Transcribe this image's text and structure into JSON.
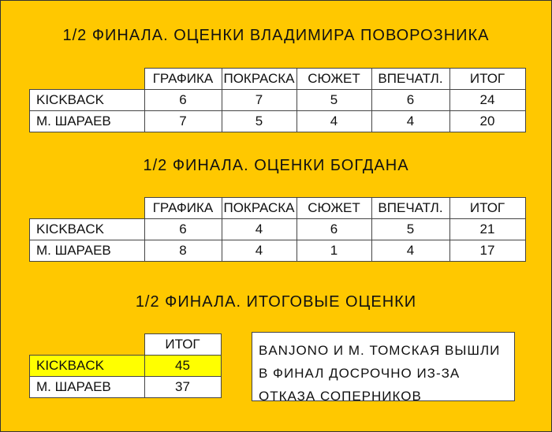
{
  "colors": {
    "background": "#FFC800",
    "highlight": "#FFFF00"
  },
  "tables": [
    {
      "title": "1/2 ФИНАЛА. ОЦЕНКИ ВЛАДИМИРА ПОВОРОЗНИКА",
      "headers": [
        "ГРАФИКА",
        "ПОКРАСКА",
        "СЮЖЕТ",
        "ВПЕЧАТЛ.",
        "ИТОГ"
      ],
      "rows": [
        {
          "name": "KICKBACK",
          "values": [
            "6",
            "7",
            "5",
            "6",
            "24"
          ]
        },
        {
          "name": "М. ШАРАЕВ",
          "values": [
            "7",
            "5",
            "4",
            "4",
            "20"
          ]
        }
      ]
    },
    {
      "title": "1/2 ФИНАЛА. ОЦЕНКИ БОГДАНА",
      "headers": [
        "ГРАФИКА",
        "ПОКРАСКА",
        "СЮЖЕТ",
        "ВПЕЧАТЛ.",
        "ИТОГ"
      ],
      "rows": [
        {
          "name": "KICKBACK",
          "values": [
            "6",
            "4",
            "6",
            "5",
            "21"
          ]
        },
        {
          "name": "М. ШАРАЕВ",
          "values": [
            "8",
            "4",
            "1",
            "4",
            "17"
          ]
        }
      ]
    },
    {
      "title": "1/2 ФИНАЛА. ИТОГОВЫЕ ОЦЕНКИ",
      "headers": [
        "ИТОГ"
      ],
      "rows": [
        {
          "name": "KICKBACK",
          "values": [
            "45"
          ],
          "highlighted": true
        },
        {
          "name": "М. ШАРАЕВ",
          "values": [
            "37"
          ]
        }
      ]
    }
  ],
  "note": "BANJONO И М. ТОМСКАЯ ВЫШЛИ В ФИНАЛ ДОСРОЧНО ИЗ-ЗА ОТКАЗА СОПЕРНИКОВ"
}
